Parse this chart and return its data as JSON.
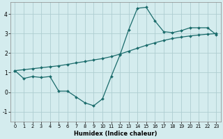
{
  "xlabel": "Humidex (Indice chaleur)",
  "background_color": "#d4ecee",
  "grid_color": "#aecdd1",
  "line_color": "#1a6b6b",
  "xlim": [
    -0.5,
    23.5
  ],
  "ylim": [
    -1.5,
    4.6
  ],
  "yticks": [
    -1,
    0,
    1,
    2,
    3,
    4
  ],
  "xticks": [
    0,
    1,
    2,
    3,
    4,
    5,
    6,
    7,
    8,
    9,
    10,
    11,
    12,
    13,
    14,
    15,
    16,
    17,
    18,
    19,
    20,
    21,
    22,
    23
  ],
  "line1_x": [
    0,
    1,
    2,
    3,
    4,
    5,
    6,
    7,
    8,
    9,
    10,
    11,
    12,
    13,
    14,
    15,
    16,
    17,
    18,
    19,
    20,
    21,
    22,
    23
  ],
  "line1_y": [
    1.1,
    0.7,
    0.8,
    0.75,
    0.8,
    0.05,
    0.05,
    -0.25,
    -0.55,
    -0.7,
    -0.35,
    0.8,
    1.9,
    3.2,
    4.3,
    4.35,
    3.65,
    3.1,
    3.05,
    3.15,
    3.3,
    3.3,
    3.3,
    2.95
  ],
  "line2_x": [
    0,
    1,
    2,
    3,
    4,
    5,
    6,
    7,
    8,
    9,
    10,
    11,
    12,
    13,
    14,
    15,
    16,
    17,
    18,
    19,
    20,
    21,
    22,
    23
  ],
  "line2_y": [
    1.1,
    1.15,
    1.2,
    1.25,
    1.3,
    1.35,
    1.42,
    1.5,
    1.57,
    1.65,
    1.72,
    1.82,
    1.95,
    2.1,
    2.25,
    2.4,
    2.53,
    2.65,
    2.75,
    2.82,
    2.88,
    2.93,
    2.97,
    3.0
  ],
  "figsize": [
    3.2,
    2.0
  ],
  "dpi": 100
}
